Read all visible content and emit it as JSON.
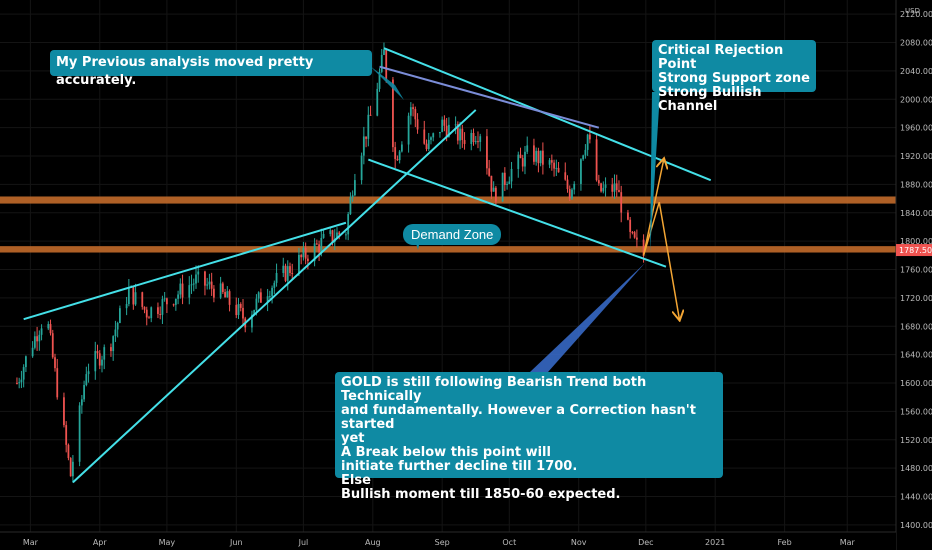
{
  "chart_data": {
    "type": "candlestick",
    "symbol": "GOLD",
    "currency": "USD",
    "last_price": "1787.50",
    "ylim": [
      1390,
      2140
    ],
    "y_ticks": [
      1400,
      1440,
      1480,
      1520,
      1560,
      1600,
      1640,
      1680,
      1720,
      1760,
      1800,
      1840,
      1880,
      1920,
      1960,
      2000,
      2040,
      2080,
      2120
    ],
    "x_labels": [
      "Mar",
      "Apr",
      "May",
      "Jun",
      "Jul",
      "Aug",
      "Sep",
      "Oct",
      "Nov",
      "Dec",
      "2021",
      "Feb",
      "Mar"
    ],
    "price_path": [
      {
        "date": "2020-02-24",
        "close": 1600
      },
      {
        "date": "2020-03-01",
        "close": 1650
      },
      {
        "date": "2020-03-08",
        "close": 1700
      },
      {
        "date": "2020-03-14",
        "close": 1570
      },
      {
        "date": "2020-03-19",
        "close": 1470
      },
      {
        "date": "2020-03-26",
        "close": 1620
      },
      {
        "date": "2020-04-05",
        "close": 1650
      },
      {
        "date": "2020-04-14",
        "close": 1730
      },
      {
        "date": "2020-04-22",
        "close": 1700
      },
      {
        "date": "2020-05-01",
        "close": 1715
      },
      {
        "date": "2020-05-14",
        "close": 1745
      },
      {
        "date": "2020-05-24",
        "close": 1730
      },
      {
        "date": "2020-06-05",
        "close": 1690
      },
      {
        "date": "2020-06-14",
        "close": 1730
      },
      {
        "date": "2020-06-28",
        "close": 1770
      },
      {
        "date": "2020-07-10",
        "close": 1800
      },
      {
        "date": "2020-07-20",
        "close": 1815
      },
      {
        "date": "2020-07-24",
        "close": 1900
      },
      {
        "date": "2020-07-31",
        "close": 1975
      },
      {
        "date": "2020-08-06",
        "close": 2065
      },
      {
        "date": "2020-08-11",
        "close": 1915
      },
      {
        "date": "2020-08-18",
        "close": 1990
      },
      {
        "date": "2020-08-25",
        "close": 1930
      },
      {
        "date": "2020-09-01",
        "close": 1965
      },
      {
        "date": "2020-09-10",
        "close": 1945
      },
      {
        "date": "2020-09-18",
        "close": 1955
      },
      {
        "date": "2020-09-24",
        "close": 1865
      },
      {
        "date": "2020-10-02",
        "close": 1900
      },
      {
        "date": "2020-10-10",
        "close": 1925
      },
      {
        "date": "2020-10-20",
        "close": 1905
      },
      {
        "date": "2020-10-28",
        "close": 1870
      },
      {
        "date": "2020-11-05",
        "close": 1950
      },
      {
        "date": "2020-11-10",
        "close": 1870
      },
      {
        "date": "2020-11-18",
        "close": 1875
      },
      {
        "date": "2020-11-24",
        "close": 1805
      },
      {
        "date": "2020-11-30",
        "close": 1780
      }
    ],
    "zones": [
      {
        "y_low": 1853,
        "y_high": 1863,
        "color": "#c26a2a"
      },
      {
        "y_low": 1784,
        "y_high": 1793,
        "color": "#c26a2a"
      }
    ],
    "trendlines": [
      {
        "x1": "2020-02-27",
        "y1": 1690,
        "x2": "2020-07-20",
        "y2": 1826,
        "color": "#44e0e8"
      },
      {
        "x1": "2020-03-20",
        "y1": 1460,
        "x2": "2020-09-16",
        "y2": 1985,
        "color": "#44e0e8"
      },
      {
        "x1": "2020-08-06",
        "y1": 2072,
        "x2": "2020-12-30",
        "y2": 1886,
        "color": "#44e0e8"
      },
      {
        "x1": "2020-07-30",
        "y1": 1915,
        "x2": "2020-12-10",
        "y2": 1764,
        "color": "#44e0e8"
      },
      {
        "x1": "2020-08-04",
        "y1": 2046,
        "x2": "2020-11-10",
        "y2": 1960,
        "color": "#7b8dd8"
      },
      {
        "x1": "2020-07-31",
        "y1": 1862,
        "x2": "2020-07-31",
        "y2": 1862,
        "color": "#44e0e8"
      }
    ],
    "projection_arrows": [
      {
        "points": [
          [
            "2020-11-30",
            1780
          ],
          [
            "2020-12-09",
            1915
          ]
        ],
        "color": "#f4a634"
      },
      {
        "points": [
          [
            "2020-11-30",
            1780
          ],
          [
            "2020-12-07",
            1855
          ],
          [
            "2020-12-16",
            1690
          ]
        ],
        "color": "#f4a634"
      }
    ],
    "annotations": {
      "previous": "My Previous analysis moved pretty accurately.",
      "critical": "Critical Rejection Point\nStrong Support zone\nStrong Bullish Channel",
      "demand": "Demand Zone",
      "outlook": "GOLD is still following Bearish Trend both Technically\nand fundamentally. However a Correction hasn't started\nyet\nA Break below this point will\ninitiate further decline till 1700.\nElse\nBullish moment till 1850-60 expected."
    }
  }
}
